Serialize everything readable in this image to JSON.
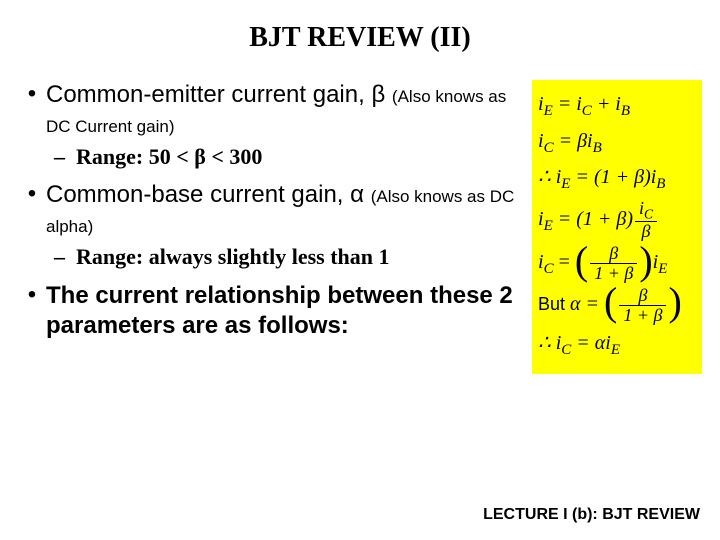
{
  "title": "BJT REVIEW (II)",
  "bullets": {
    "b1_main": "Common-emitter current gain, β ",
    "b1_paren": "(Also knows as DC Current gain)",
    "b1_sub": "Range: 50 < β < 300",
    "b2_main": "Common-base current gain, α ",
    "b2_paren": "(Also knows as DC alpha)",
    "b2_sub": "Range: always slightly less than 1",
    "b3_main": "The current relationship between these 2 parameters are as follows:"
  },
  "equations": {
    "eq1_lhs": "i",
    "eq1_sub": "E",
    "eq1_mid": " = i",
    "eq1_sub2": "C",
    "eq1_mid2": " + i",
    "eq1_sub3": "B",
    "eq2_lhs": "i",
    "eq2_sub": "C",
    "eq2_mid": " = βi",
    "eq2_sub2": "B",
    "eq3_pre": "∴ i",
    "eq3_sub": "E",
    "eq3_mid": " = (1 + β)i",
    "eq3_sub2": "B",
    "eq4_lhs": "i",
    "eq4_sub": "E",
    "eq4_mid": " = (1 + β)",
    "eq4_num": "i",
    "eq4_numsub": "C",
    "eq4_den": "β",
    "eq5_lhs": "i",
    "eq5_sub": "C",
    "eq5_eqnum": "β",
    "eq5_eqden": "1 + β",
    "eq5_rhs": "i",
    "eq5_rhssub": "E",
    "but": "But ",
    "eq6_lhs": "α = ",
    "eq6_num": "β",
    "eq6_den": "1 + β",
    "eq7_pre": "∴ i",
    "eq7_sub": "C",
    "eq7_mid": " = αi",
    "eq7_sub2": "E"
  },
  "footer": "LECTURE I (b): BJT REVIEW",
  "colors": {
    "highlight": "#ffff00",
    "background": "#ffffff",
    "text": "#000000"
  }
}
